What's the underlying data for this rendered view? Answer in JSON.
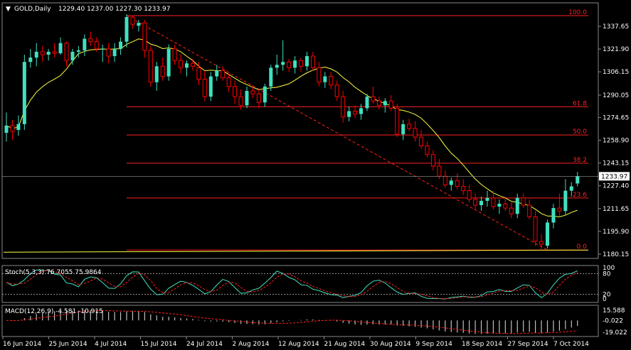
{
  "header": {
    "symbol": "GOLD,Daily",
    "ohlc": "1229.40 1237.00 1227.30 1233.97"
  },
  "colors": {
    "background": "#000000",
    "bull": "#40e0c0",
    "bear": "#ff0000",
    "ma": "#ffff40",
    "fibo": "#ff2020",
    "stoch_main": "#40e0c0",
    "stoch_signal": "#ff2020",
    "macd_hist": "#c0c0c0",
    "macd_signal": "#ff2020",
    "grid_dotted": "#c0c0c0"
  },
  "price_labels": [
    "1337.65",
    "1321.90",
    "1306.15",
    "1290.05",
    "1274.65",
    "1258.90",
    "1243.15",
    "1227.40",
    "1211.65",
    "1195.90",
    "1180.15"
  ],
  "current_price": "1233.97",
  "date_labels": [
    "16 Jun 2014",
    "25 Jun 2014",
    "4 Jul 2014",
    "15 Jul 2014",
    "24 Jul 2014",
    "2 Aug 2014",
    "12 Aug 2014",
    "21 Aug 2014",
    "30 Aug 2014",
    "9 Sep 2014",
    "18 Sep 2014",
    "27 Sep 2014",
    "7 Oct 2014"
  ],
  "fibo_levels": [
    {
      "label": "100.0",
      "price": 1345.0
    },
    {
      "label": "61.8",
      "price": 1282.0
    },
    {
      "label": "50.0",
      "price": 1262.5
    },
    {
      "label": "38.2",
      "price": 1243.0
    },
    {
      "label": "23.6",
      "price": 1219.0
    },
    {
      "label": "0.0",
      "price": 1183.0
    }
  ],
  "stoch": {
    "title": "Stoch(5,3,3) 76.7055 75.9864",
    "levels": [
      "100",
      "80",
      "20",
      "0"
    ]
  },
  "macd": {
    "title": "MACD(12,26,9) -4.581 -10.915",
    "levels": [
      "15.588",
      "-0.022",
      "-19.022"
    ]
  },
  "chart_data": {
    "type": "candlestick",
    "title": "GOLD,Daily",
    "ylim": [
      1180.15,
      1345.0
    ],
    "candles": [
      [
        1264,
        1278,
        1258,
        1269
      ],
      [
        1269,
        1273,
        1259,
        1265
      ],
      [
        1266,
        1276,
        1262,
        1270
      ],
      [
        1270,
        1318,
        1266,
        1313
      ],
      [
        1313,
        1322,
        1309,
        1316
      ],
      [
        1316,
        1326,
        1310,
        1320
      ],
      [
        1320,
        1324,
        1313,
        1318
      ],
      [
        1318,
        1322,
        1314,
        1320
      ],
      [
        1320,
        1326,
        1316,
        1319
      ],
      [
        1319,
        1330,
        1318,
        1326
      ],
      [
        1326,
        1327,
        1310,
        1314
      ],
      [
        1314,
        1322,
        1311,
        1320
      ],
      [
        1320,
        1324,
        1316,
        1321
      ],
      [
        1321,
        1332,
        1317,
        1329
      ],
      [
        1329,
        1334,
        1324,
        1327
      ],
      [
        1327,
        1330,
        1320,
        1322
      ],
      [
        1322,
        1325,
        1313,
        1322
      ],
      [
        1322,
        1326,
        1312,
        1317
      ],
      [
        1317,
        1326,
        1313,
        1322
      ],
      [
        1322,
        1330,
        1318,
        1327
      ],
      [
        1327,
        1346,
        1323,
        1344
      ],
      [
        1344,
        1345,
        1336,
        1339
      ],
      [
        1338,
        1342,
        1334,
        1340
      ],
      [
        1340,
        1342,
        1316,
        1321
      ],
      [
        1321,
        1324,
        1296,
        1299
      ],
      [
        1299,
        1313,
        1293,
        1310
      ],
      [
        1310,
        1316,
        1300,
        1303
      ],
      [
        1303,
        1325,
        1300,
        1322
      ],
      [
        1322,
        1325,
        1311,
        1314
      ],
      [
        1314,
        1318,
        1305,
        1309
      ],
      [
        1309,
        1314,
        1303,
        1312
      ],
      [
        1312,
        1315,
        1307,
        1310
      ],
      [
        1309,
        1313,
        1297,
        1301
      ],
      [
        1301,
        1307,
        1286,
        1289
      ],
      [
        1289,
        1306,
        1286,
        1303
      ],
      [
        1303,
        1311,
        1300,
        1307
      ],
      [
        1307,
        1310,
        1300,
        1302
      ],
      [
        1302,
        1305,
        1292,
        1296
      ],
      [
        1296,
        1300,
        1284,
        1289
      ],
      [
        1289,
        1294,
        1280,
        1283
      ],
      [
        1283,
        1296,
        1281,
        1293
      ],
      [
        1293,
        1297,
        1288,
        1291
      ],
      [
        1291,
        1294,
        1281,
        1285
      ],
      [
        1285,
        1298,
        1282,
        1296
      ],
      [
        1296,
        1311,
        1293,
        1309
      ],
      [
        1309,
        1318,
        1304,
        1311
      ],
      [
        1311,
        1328,
        1307,
        1313
      ],
      [
        1313,
        1315,
        1306,
        1309
      ],
      [
        1309,
        1317,
        1305,
        1314
      ],
      [
        1314,
        1316,
        1306,
        1310
      ],
      [
        1310,
        1320,
        1307,
        1317
      ],
      [
        1317,
        1320,
        1307,
        1309
      ],
      [
        1309,
        1313,
        1296,
        1299
      ],
      [
        1299,
        1306,
        1295,
        1303
      ],
      [
        1303,
        1306,
        1294,
        1297
      ],
      [
        1297,
        1300,
        1286,
        1289
      ],
      [
        1289,
        1293,
        1271,
        1275
      ],
      [
        1275,
        1282,
        1272,
        1279
      ],
      [
        1279,
        1283,
        1274,
        1277
      ],
      [
        1277,
        1284,
        1273,
        1281
      ],
      [
        1281,
        1291,
        1279,
        1289
      ],
      [
        1289,
        1296,
        1284,
        1286
      ],
      [
        1286,
        1289,
        1280,
        1283
      ],
      [
        1283,
        1288,
        1278,
        1286
      ],
      [
        1286,
        1290,
        1279,
        1281
      ],
      [
        1281,
        1284,
        1261,
        1263
      ],
      [
        1263,
        1273,
        1259,
        1270
      ],
      [
        1270,
        1274,
        1265,
        1267
      ],
      [
        1267,
        1272,
        1258,
        1261
      ],
      [
        1261,
        1266,
        1253,
        1255
      ],
      [
        1255,
        1258,
        1247,
        1249
      ],
      [
        1249,
        1252,
        1238,
        1241
      ],
      [
        1241,
        1246,
        1232,
        1234
      ],
      [
        1234,
        1238,
        1226,
        1228
      ],
      [
        1228,
        1233,
        1224,
        1231
      ],
      [
        1231,
        1236,
        1225,
        1227
      ],
      [
        1227,
        1232,
        1221,
        1224
      ],
      [
        1224,
        1228,
        1216,
        1218
      ],
      [
        1218,
        1222,
        1211,
        1214
      ],
      [
        1214,
        1220,
        1210,
        1217
      ],
      [
        1217,
        1224,
        1213,
        1219
      ],
      [
        1219,
        1224,
        1211,
        1213
      ],
      [
        1213,
        1218,
        1208,
        1215
      ],
      [
        1215,
        1220,
        1210,
        1212
      ],
      [
        1212,
        1216,
        1205,
        1208
      ],
      [
        1208,
        1222,
        1205,
        1219
      ],
      [
        1219,
        1222,
        1212,
        1214
      ],
      [
        1214,
        1218,
        1204,
        1206
      ],
      [
        1206,
        1210,
        1186,
        1189
      ],
      [
        1189,
        1194,
        1183,
        1187
      ],
      [
        1186,
        1204,
        1184,
        1202
      ],
      [
        1202,
        1215,
        1198,
        1212
      ],
      [
        1212,
        1222,
        1206,
        1210
      ],
      [
        1210,
        1232,
        1207,
        1224
      ],
      [
        1224,
        1230,
        1220,
        1227
      ],
      [
        1229,
        1237,
        1227,
        1234
      ]
    ]
  }
}
